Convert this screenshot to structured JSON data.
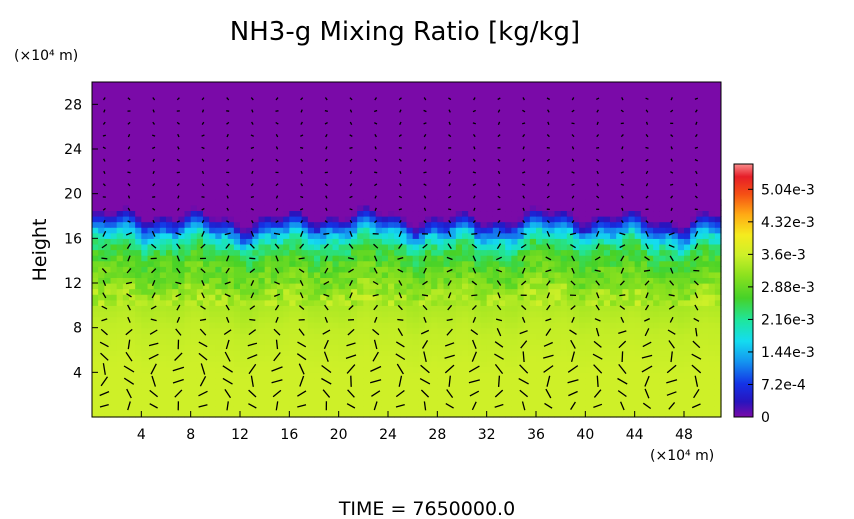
{
  "chart_data": {
    "type": "heatmap",
    "title": "NH3-g Mixing Ratio [kg/kg]",
    "ylabel": "Height",
    "y_unit": "(×10⁴ m)",
    "x_unit": "(×10⁴ m)",
    "xlim": [
      0,
      51
    ],
    "ylim": [
      0,
      30
    ],
    "x_ticks": [
      "4",
      "8",
      "12",
      "16",
      "20",
      "24",
      "28",
      "32",
      "36",
      "40",
      "44",
      "48"
    ],
    "y_ticks": [
      "4",
      "8",
      "12",
      "16",
      "20",
      "24",
      "28"
    ],
    "x_tick_values": [
      4,
      8,
      12,
      16,
      20,
      24,
      28,
      32,
      36,
      40,
      44,
      48
    ],
    "y_tick_values": [
      4,
      8,
      12,
      16,
      20,
      24,
      28
    ],
    "colorbar": {
      "range": [
        0,
        0.0056
      ],
      "tick_labels": [
        "0",
        "7.2e-4",
        "1.44e-3",
        "2.16e-3",
        "2.88e-3",
        "3.6e-3",
        "4.32e-3",
        "5.04e-3"
      ],
      "tick_values": [
        0,
        0.00072,
        0.00144,
        0.00216,
        0.00288,
        0.0036,
        0.00432,
        0.00504
      ]
    },
    "profile": {
      "heights": [
        0,
        4,
        8,
        11,
        12,
        13,
        14,
        15,
        16,
        17,
        18,
        30
      ],
      "values": [
        0.0036,
        0.0036,
        0.0035,
        0.0033,
        0.003,
        0.0029,
        0.0027,
        0.0024,
        0.0018,
        0.0009,
        0,
        0
      ]
    },
    "has_vector_overlay": true
  },
  "footer": {
    "time_text": "TIME  =  7650000.0"
  },
  "colors": {
    "background": "#ffffff",
    "upper_fill": "#7a0aa8"
  }
}
